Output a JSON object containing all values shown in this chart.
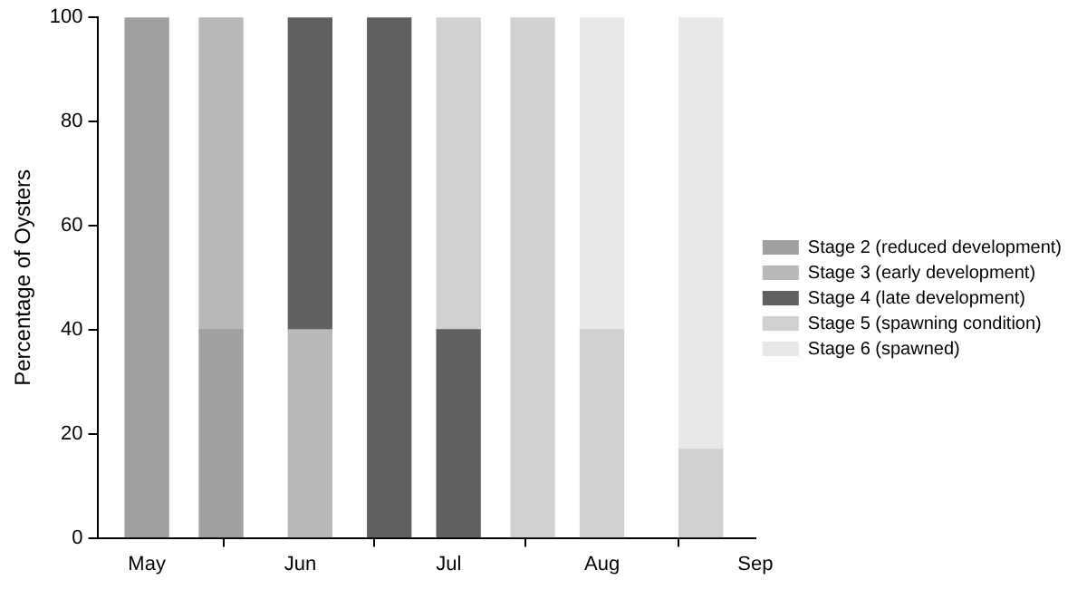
{
  "chart_data": {
    "type": "bar",
    "stacked": true,
    "ylabel": "Percentage of Oysters",
    "x": [
      "--05-01",
      "--05-16",
      "--06-03",
      "--06-19",
      "--07-03",
      "--07-18",
      "--08-01",
      "--08-21"
    ],
    "xlim": [
      "--04-21",
      "--09-01"
    ],
    "xticks": [
      {
        "value": "--05-01",
        "label": "May"
      },
      {
        "value": "--06-01",
        "label": "Jun"
      },
      {
        "value": "--07-01",
        "label": "Jul"
      },
      {
        "value": "--08-01",
        "label": "Aug"
      },
      {
        "value": "--09-01",
        "label": "Sep"
      }
    ],
    "ylim": [
      0,
      100
    ],
    "yticks": [
      0,
      20,
      40,
      60,
      80,
      100
    ],
    "legend": "right",
    "series": [
      {
        "name": "Stage 2 (reduced development)",
        "color": "#a0a0a0",
        "values": [
          100,
          40,
          null,
          null,
          null,
          null,
          null,
          null
        ]
      },
      {
        "name": "Stage 3 (early development)",
        "color": "#b8b8b8",
        "values": [
          null,
          60,
          40,
          null,
          null,
          null,
          null,
          null
        ]
      },
      {
        "name": "Stage 4 (late development)",
        "color": "#606060",
        "values": [
          null,
          null,
          60,
          100,
          40,
          null,
          null,
          null
        ]
      },
      {
        "name": "Stage 5 (spawning condition)",
        "color": "#d0d0d0",
        "values": [
          null,
          null,
          null,
          null,
          60,
          100,
          40,
          17
        ]
      },
      {
        "name": "Stage 6 (spawned)",
        "color": "#e8e8e8",
        "values": [
          null,
          null,
          null,
          null,
          null,
          null,
          60,
          83
        ]
      }
    ]
  }
}
